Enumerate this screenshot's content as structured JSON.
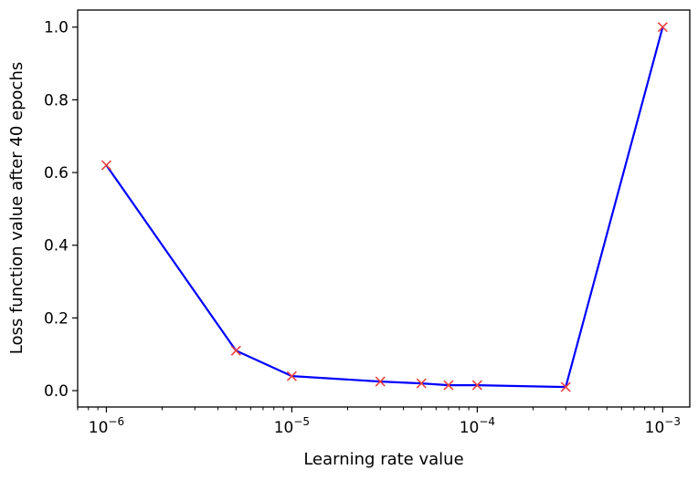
{
  "chart_data": {
    "type": "line",
    "title": "",
    "xlabel": "Learning rate value",
    "ylabel": "Loss function value after 40 epochs",
    "x_scale": "log",
    "xlim": [
      7e-07,
      0.0014
    ],
    "ylim": [
      -0.045,
      1.047
    ],
    "grid": false,
    "x_ticks": [
      {
        "value": 1e-06,
        "base": "10",
        "exp": "−6"
      },
      {
        "value": 1e-05,
        "base": "10",
        "exp": "−5"
      },
      {
        "value": 0.0001,
        "base": "10",
        "exp": "−4"
      },
      {
        "value": 0.001,
        "base": "10",
        "exp": "−3"
      }
    ],
    "y_ticks": [
      "0.0",
      "0.2",
      "0.4",
      "0.6",
      "0.8",
      "1.0"
    ],
    "line_color": "#0000ff",
    "marker_color": "#e84040",
    "marker": "x",
    "series": [
      {
        "x": [
          1e-06,
          5e-06,
          1e-05,
          3e-05,
          5e-05,
          7e-05,
          0.0001,
          0.0003,
          0.001
        ],
        "y": [
          0.62,
          0.11,
          0.04,
          0.025,
          0.02,
          0.015,
          0.015,
          0.01,
          1.0
        ]
      }
    ]
  }
}
